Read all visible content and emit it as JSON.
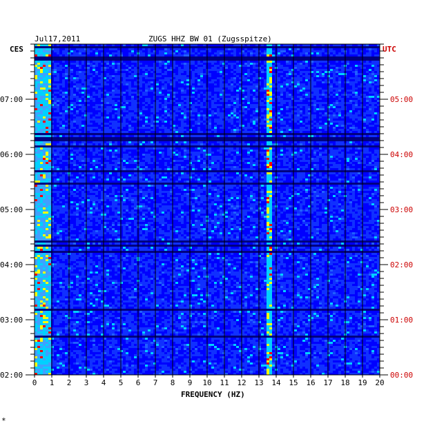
{
  "chart_data": {
    "type": "heatmap",
    "title_date": "Jul17,2011",
    "title_station": "ZUGS HHZ BW 01 (Zugsspitze)",
    "left_timezone": "CES",
    "right_timezone": "UTC",
    "xlabel": "FREQUENCY (HZ)",
    "xlim": [
      0,
      20
    ],
    "x_ticks": [
      "0",
      "1",
      "2",
      "3",
      "4",
      "5",
      "6",
      "7",
      "8",
      "9",
      "10",
      "11",
      "12",
      "13",
      "14",
      "15",
      "16",
      "17",
      "18",
      "19",
      "20"
    ],
    "left_ticks": [
      "07:00",
      "06:00",
      "05:00",
      "04:00",
      "03:00",
      "02:00"
    ],
    "right_ticks": [
      "05:00",
      "04:00",
      "03:00",
      "02:00",
      "01:00",
      "00:00"
    ],
    "time_range_ces": [
      "02:00",
      "07:40"
    ],
    "dominant_frequency_hz": [
      0.2,
      0.8
    ],
    "persistent_line_hz": 13.5,
    "footer_mark": "*",
    "colors": {
      "background": "#0000A0",
      "low": "#0000FF",
      "mid": "#00D0FF",
      "high": "#FFFF00",
      "peak": "#FF0000",
      "grid": "#000000",
      "utc_text": "#CC0000"
    }
  }
}
